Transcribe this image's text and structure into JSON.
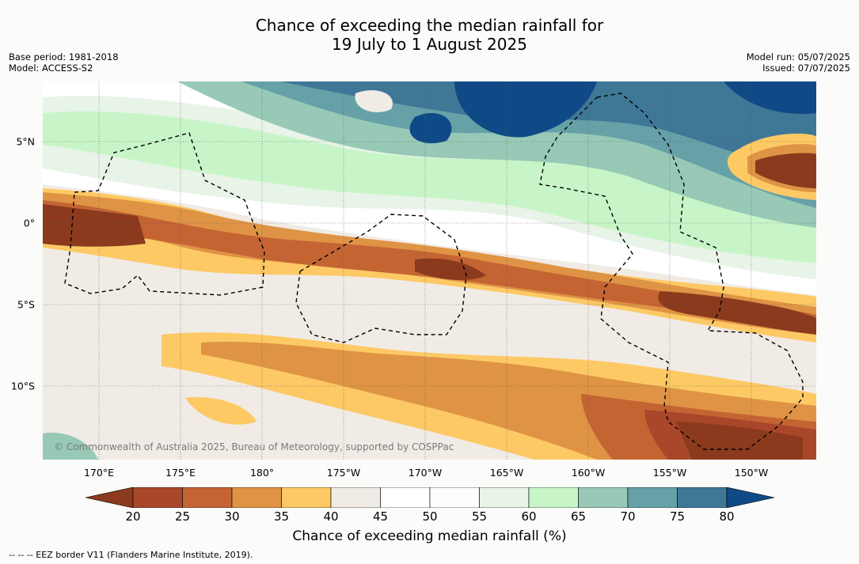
{
  "title": {
    "line1": "Chance of exceeding the median rainfall for",
    "line2": "19 July to 1 August 2025"
  },
  "meta": {
    "base_period": "Base period: 1981-2018",
    "model": "Model: ACCESS-S2",
    "model_run": "Model run: 05/07/2025",
    "issued": "Issued: 07/07/2025"
  },
  "map": {
    "lat_labels": [
      "5°N",
      "0°",
      "5°S",
      "10°S"
    ],
    "lon_labels": [
      "170°E",
      "175°E",
      "180°",
      "175°W",
      "170°W",
      "165°W",
      "160°W",
      "155°W",
      "150°W"
    ],
    "copyright": "© Commonwealth of Australia 2025, Bureau of Meteorology, supported by COSPPac"
  },
  "colorbar": {
    "title": "Chance of exceeding median rainfall (%)",
    "ticks": [
      "20",
      "25",
      "30",
      "35",
      "40",
      "45",
      "50",
      "55",
      "60",
      "65",
      "70",
      "75",
      "80"
    ],
    "colors": [
      "#8b3a1e",
      "#a9472a",
      "#c46433",
      "#df9445",
      "#fdc965",
      "#f1ebe6",
      "#ffffff",
      "#fdfdfd",
      "#e8f4e8",
      "#c8f5c8",
      "#97c9b6",
      "#66a1a8",
      "#3f7797",
      "#0f4a86"
    ]
  },
  "footer": {
    "eez_note": "--  --  -- EEZ border V11 (Flanders Marine Institute, 2019)."
  }
}
